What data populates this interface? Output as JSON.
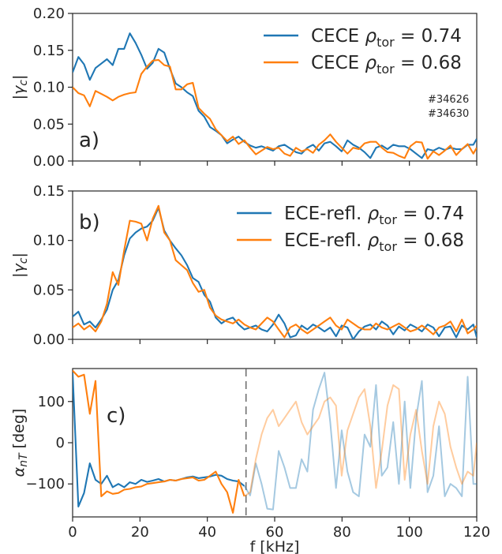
{
  "chart_data": [
    {
      "type": "line",
      "panel_label": "a)",
      "ylabel": "|γc|",
      "xlim": [
        0,
        120
      ],
      "ylim": [
        0,
        0.2
      ],
      "xticks": [
        0,
        20,
        40,
        60,
        80,
        100,
        120
      ],
      "yticks": [
        0.0,
        0.05,
        0.1,
        0.15,
        0.2
      ],
      "ytick_labels": [
        "0.00",
        "0.05",
        "0.10",
        "0.15",
        "0.20"
      ],
      "legend": "top-right",
      "annotations": [
        "#34626",
        "#34630"
      ],
      "x": [
        0,
        1.7,
        3.4,
        5.1,
        6.8,
        8.5,
        10.2,
        11.9,
        13.6,
        15.3,
        17,
        18.7,
        20.4,
        22.1,
        23.8,
        25.5,
        27.2,
        28.9,
        30.6,
        32.3,
        34,
        35.7,
        37.4,
        39.1,
        40.8,
        42.5,
        44.2,
        45.9,
        47.6,
        49.3,
        51,
        52.7,
        54.4,
        56.1,
        57.8,
        59.5,
        61.2,
        62.9,
        64.6,
        66.3,
        68,
        69.7,
        71.4,
        73.1,
        74.8,
        76.5,
        78.2,
        79.9,
        81.6,
        83.3,
        85,
        86.7,
        88.4,
        90.1,
        91.8,
        93.5,
        95.2,
        96.9,
        98.6,
        100.3,
        102,
        103.7,
        105.4,
        107.1,
        108.8,
        110.5,
        112.2,
        113.9,
        115.6,
        117.3,
        119,
        120
      ],
      "series": [
        {
          "name": "CECE",
          "name_rho": "ρtor = 0.74",
          "color": "#1f77b4",
          "values": [
            0.12,
            0.141,
            0.131,
            0.11,
            0.126,
            0.132,
            0.138,
            0.13,
            0.152,
            0.152,
            0.173,
            0.16,
            0.144,
            0.125,
            0.133,
            0.152,
            0.147,
            0.125,
            0.105,
            0.1,
            0.093,
            0.088,
            0.068,
            0.06,
            0.046,
            0.041,
            0.035,
            0.024,
            0.029,
            0.033,
            0.026,
            0.021,
            0.018,
            0.02,
            0.017,
            0.014,
            0.02,
            0.022,
            0.017,
            0.012,
            0.01,
            0.018,
            0.022,
            0.014,
            0.024,
            0.026,
            0.02,
            0.013,
            0.028,
            0.022,
            0.018,
            0.012,
            0.004,
            0.018,
            0.021,
            0.016,
            0.022,
            0.02,
            0.02,
            0.016,
            0.01,
            0.004,
            0.016,
            0.014,
            0.018,
            0.015,
            0.018,
            0.016,
            0.016,
            0.022,
            0.022,
            0.03
          ]
        },
        {
          "name": "CECE",
          "name_rho": "ρtor = 0.68",
          "color": "#ff7f0e",
          "values": [
            0.1,
            0.092,
            0.089,
            0.074,
            0.095,
            0.091,
            0.087,
            0.082,
            0.087,
            0.09,
            0.092,
            0.093,
            0.118,
            0.128,
            0.136,
            0.137,
            0.13,
            0.128,
            0.097,
            0.097,
            0.104,
            0.106,
            0.072,
            0.064,
            0.057,
            0.043,
            0.035,
            0.027,
            0.033,
            0.023,
            0.028,
            0.018,
            0.009,
            0.014,
            0.019,
            0.016,
            0.018,
            0.01,
            0.007,
            0.018,
            0.013,
            0.016,
            0.011,
            0.022,
            0.028,
            0.036,
            0.026,
            0.018,
            0.01,
            0.018,
            0.016,
            0.024,
            0.026,
            0.026,
            0.018,
            0.012,
            0.011,
            0.007,
            0.004,
            0.02,
            0.026,
            0.025,
            0.003,
            0.013,
            0.008,
            0.014,
            0.021,
            0.008,
            0.016,
            0.023,
            0.01,
            0.018
          ]
        }
      ]
    },
    {
      "type": "line",
      "panel_label": "b)",
      "ylabel": "|γc|",
      "xlim": [
        0,
        120
      ],
      "ylim": [
        0,
        0.15
      ],
      "xticks": [
        0,
        20,
        40,
        60,
        80,
        100,
        120
      ],
      "yticks": [
        0.0,
        0.05,
        0.1,
        0.15
      ],
      "ytick_labels": [
        "0.00",
        "0.05",
        "0.10",
        "0.15"
      ],
      "legend": "top-right",
      "x": [
        0,
        1.7,
        3.4,
        5.1,
        6.8,
        8.5,
        10.2,
        11.9,
        13.6,
        15.3,
        17,
        18.7,
        20.4,
        22.1,
        23.8,
        25.5,
        27.2,
        28.9,
        30.6,
        32.3,
        34,
        35.7,
        37.4,
        39.1,
        40.8,
        42.5,
        44.2,
        45.9,
        47.6,
        49.3,
        51,
        52.7,
        54.4,
        56.1,
        57.8,
        59.5,
        61.2,
        62.9,
        64.6,
        66.3,
        68,
        69.7,
        71.4,
        73.1,
        74.8,
        76.5,
        78.2,
        79.9,
        81.6,
        83.3,
        85,
        86.7,
        88.4,
        90.1,
        91.8,
        93.5,
        95.2,
        96.9,
        98.6,
        100.3,
        102,
        103.7,
        105.4,
        107.1,
        108.8,
        110.5,
        112.2,
        113.9,
        115.6,
        117.3,
        119,
        120
      ],
      "series": [
        {
          "name": "ECE-refl.",
          "name_rho": "ρtor = 0.74",
          "color": "#1f77b4",
          "values": [
            0.023,
            0.028,
            0.015,
            0.018,
            0.012,
            0.02,
            0.03,
            0.05,
            0.06,
            0.085,
            0.102,
            0.108,
            0.112,
            0.114,
            0.12,
            0.133,
            0.11,
            0.1,
            0.092,
            0.085,
            0.075,
            0.062,
            0.058,
            0.045,
            0.038,
            0.022,
            0.016,
            0.02,
            0.022,
            0.015,
            0.01,
            0.012,
            0.014,
            0.01,
            0.008,
            0.015,
            0.025,
            0.016,
            0.002,
            0.004,
            0.014,
            0.01,
            0.015,
            0.012,
            0.008,
            0.012,
            0.003,
            0.014,
            0.012,
            0.0,
            0.008,
            0.013,
            0.015,
            0.01,
            0.018,
            0.014,
            0.005,
            0.013,
            0.009,
            0.015,
            0.012,
            0.008,
            0.015,
            0.012,
            0.003,
            0.012,
            0.013,
            0.002,
            0.014,
            0.01,
            0.015,
            0.002
          ]
        },
        {
          "name": "ECE-refl.",
          "name_rho": "ρtor = 0.68",
          "color": "#ff7f0e",
          "values": [
            0.012,
            0.016,
            0.01,
            0.014,
            0.008,
            0.018,
            0.036,
            0.068,
            0.055,
            0.09,
            0.12,
            0.119,
            0.117,
            0.1,
            0.122,
            0.135,
            0.108,
            0.1,
            0.08,
            0.075,
            0.07,
            0.057,
            0.048,
            0.05,
            0.032,
            0.024,
            0.02,
            0.018,
            0.016,
            0.02,
            0.015,
            0.012,
            0.01,
            0.016,
            0.022,
            0.018,
            0.01,
            0.002,
            0.012,
            0.015,
            0.01,
            0.006,
            0.01,
            0.014,
            0.018,
            0.022,
            0.014,
            0.01,
            0.02,
            0.016,
            0.012,
            0.01,
            0.01,
            0.016,
            0.012,
            0.01,
            0.013,
            0.016,
            0.012,
            0.008,
            0.01,
            0.014,
            0.01,
            0.005,
            0.012,
            0.014,
            0.018,
            0.008,
            0.02,
            0.006,
            0.01,
            0.014
          ]
        }
      ]
    },
    {
      "type": "line",
      "panel_label": "c)",
      "ylabel": "αnT [deg]",
      "xlabel": "f [kHz]",
      "xlim": [
        0,
        120
      ],
      "ylim": [
        -180,
        180
      ],
      "xticks": [
        0,
        20,
        40,
        60,
        80,
        100,
        120
      ],
      "yticks": [
        -100,
        0,
        100
      ],
      "ytick_labels": [
        "−100",
        "0",
        "100"
      ],
      "vline_x": 51.5,
      "x": [
        0,
        1.7,
        3.4,
        5.1,
        6.8,
        8.5,
        10.2,
        11.9,
        13.6,
        15.3,
        17,
        18.7,
        20.4,
        22.1,
        23.8,
        25.5,
        27.2,
        28.9,
        30.6,
        32.3,
        34,
        35.7,
        37.4,
        39.1,
        40.8,
        42.5,
        44.2,
        45.9,
        47.6,
        49.3,
        51,
        52.7,
        54.4,
        56.1,
        57.8,
        59.5,
        61.2,
        62.9,
        64.6,
        66.3,
        68,
        69.7,
        71.4,
        73.1,
        74.8,
        76.5,
        78.2,
        79.9,
        81.6,
        83.3,
        85,
        86.7,
        88.4,
        90.1,
        91.8,
        93.5,
        95.2,
        96.9,
        98.6,
        100.3,
        102,
        103.7,
        105.4,
        107.1,
        108.8,
        110.5,
        112.2,
        113.9,
        115.6,
        117.3,
        119,
        120
      ],
      "series": [
        {
          "name": "ρtor = 0.74",
          "color": "#1f77b4",
          "faded_after": 51.5,
          "values": [
            170,
            -155,
            -122,
            -50,
            -90,
            -100,
            -80,
            -108,
            -100,
            -108,
            -96,
            -100,
            -90,
            -95,
            -92,
            -88,
            -94,
            -90,
            -92,
            -88,
            -84,
            -82,
            -86,
            -84,
            -82,
            -78,
            -80,
            -88,
            -92,
            -94,
            -105,
            -128,
            -50,
            -100,
            -160,
            -162,
            -20,
            -60,
            -110,
            -110,
            -40,
            -70,
            80,
            130,
            170,
            50,
            -110,
            30,
            -70,
            -120,
            -130,
            20,
            -10,
            140,
            -80,
            -60,
            50,
            -100,
            100,
            -110,
            60,
            150,
            -120,
            -80,
            40,
            -130,
            -100,
            -110,
            -130,
            160,
            -100,
            -100
          ]
        },
        {
          "name": "ρtor = 0.68",
          "color": "#ff7f0e",
          "faded_after": 51.5,
          "values": [
            175,
            160,
            165,
            70,
            150,
            -130,
            -118,
            -124,
            -122,
            -114,
            -112,
            -108,
            -106,
            -100,
            -98,
            -96,
            -94,
            -90,
            -92,
            -88,
            -86,
            -84,
            -92,
            -90,
            -80,
            -70,
            -100,
            -120,
            -170,
            -90,
            -130,
            -120,
            -40,
            20,
            60,
            80,
            40,
            60,
            80,
            100,
            50,
            20,
            40,
            60,
            100,
            110,
            90,
            -80,
            30,
            70,
            110,
            130,
            40,
            -110,
            -20,
            90,
            140,
            130,
            -90,
            20,
            80,
            -20,
            -100,
            40,
            100,
            70,
            -10,
            -60,
            -100,
            -70,
            -80,
            0
          ]
        }
      ]
    }
  ]
}
